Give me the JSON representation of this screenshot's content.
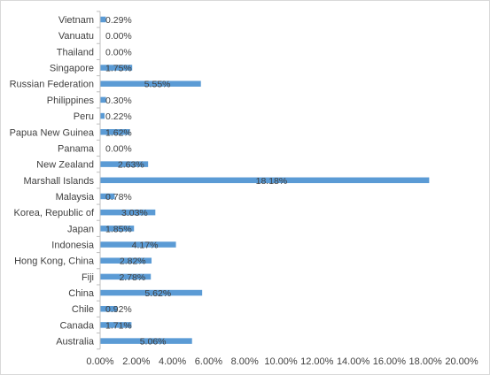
{
  "chart_data": {
    "type": "bar",
    "orientation": "horizontal",
    "title": "",
    "xlabel": "",
    "ylabel": "",
    "categories": [
      "Vietnam",
      "Vanuatu",
      "Thailand",
      "Singapore",
      "Russian Federation",
      "Philippines",
      "Peru",
      "Papua New Guinea",
      "Panama",
      "New Zealand",
      "Marshall Islands",
      "Malaysia",
      "Korea, Republic of",
      "Japan",
      "Indonesia",
      "Hong Kong, China",
      "Fiji",
      "China",
      "Chile",
      "Canada",
      "Australia"
    ],
    "values": [
      0.29,
      0.0,
      0.0,
      1.75,
      5.55,
      0.3,
      0.22,
      1.62,
      0.0,
      2.63,
      18.18,
      0.78,
      3.03,
      1.85,
      4.17,
      2.82,
      2.78,
      5.62,
      0.92,
      1.71,
      5.06
    ],
    "data_labels": [
      "0.29%",
      "0.00%",
      "0.00%",
      "1.75%",
      "5.55%",
      "0.30%",
      "0.22%",
      "1.62%",
      "0.00%",
      "2.63%",
      "18.18%",
      "0.78%",
      "3.03%",
      "1.85%",
      "4.17%",
      "2.82%",
      "2.78%",
      "5.62%",
      "0.92%",
      "1.71%",
      "5.06%"
    ],
    "xlim": [
      0,
      20
    ],
    "xticks": [
      "0.00%",
      "2.00%",
      "4.00%",
      "6.00%",
      "8.00%",
      "10.00%",
      "12.00%",
      "14.00%",
      "16.00%",
      "18.00%",
      "20.00%"
    ],
    "grid": false,
    "legend": "none",
    "bar_color": "#5b9bd5",
    "text_color": "#404040",
    "axis_color": "#bfbfbf"
  }
}
